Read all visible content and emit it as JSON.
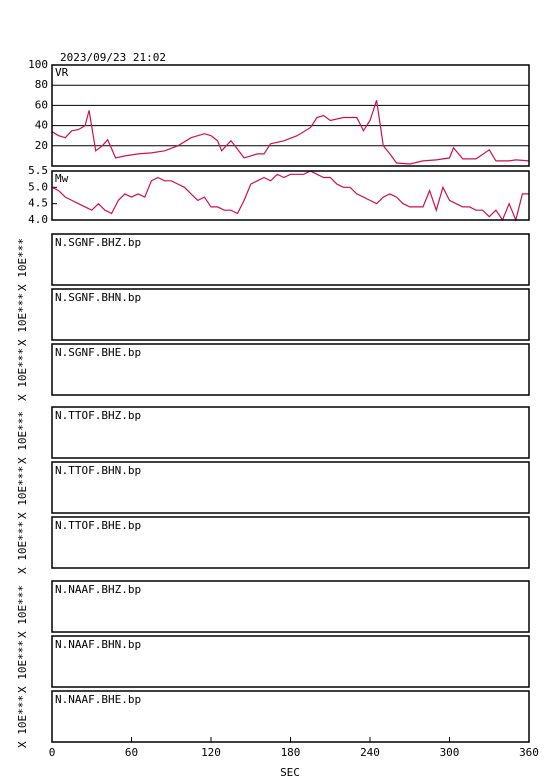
{
  "title": "2023/09/23 21:02",
  "chart_data": [
    {
      "type": "line",
      "label": "VR",
      "color": "#d0104c",
      "grid": true,
      "xlim": [
        0,
        360
      ],
      "ylim": [
        0,
        100
      ],
      "yticks": [
        20,
        40,
        60,
        80,
        100
      ],
      "x": [
        0,
        5,
        10,
        15,
        20,
        25,
        28,
        33,
        38,
        42,
        48,
        55,
        65,
        75,
        85,
        95,
        105,
        115,
        120,
        125,
        128,
        135,
        138,
        145,
        155,
        160,
        165,
        175,
        185,
        195,
        200,
        205,
        210,
        220,
        230,
        235,
        240,
        245,
        250,
        255,
        260,
        270,
        280,
        290,
        300,
        303,
        310,
        320,
        330,
        335,
        345,
        350,
        360
      ],
      "values": [
        34,
        30,
        28,
        35,
        36,
        40,
        55,
        15,
        20,
        26,
        8,
        10,
        12,
        13,
        15,
        20,
        28,
        32,
        30,
        25,
        15,
        25,
        20,
        8,
        12,
        12,
        22,
        25,
        30,
        38,
        48,
        50,
        45,
        48,
        48,
        35,
        45,
        65,
        20,
        12,
        3,
        2,
        5,
        6,
        8,
        18,
        7,
        7,
        16,
        5,
        5,
        6,
        5
      ]
    },
    {
      "type": "line",
      "label": "Mw",
      "color": "#d0104c",
      "grid": false,
      "xlim": [
        0,
        360
      ],
      "ylim": [
        4.0,
        5.5
      ],
      "yticks": [
        {
          "value": 4.0,
          "label": "4.0"
        },
        {
          "value": 4.5,
          "label": "4.5"
        },
        {
          "value": 5.0,
          "label": "5.0"
        },
        {
          "value": 5.5,
          "label": "5.5"
        }
      ],
      "x": [
        0,
        5,
        10,
        15,
        20,
        25,
        30,
        35,
        40,
        45,
        50,
        55,
        60,
        65,
        70,
        75,
        80,
        85,
        90,
        95,
        100,
        105,
        110,
        115,
        120,
        125,
        130,
        135,
        140,
        145,
        150,
        155,
        160,
        165,
        170,
        175,
        180,
        185,
        190,
        195,
        200,
        205,
        210,
        215,
        220,
        225,
        230,
        235,
        240,
        245,
        250,
        255,
        260,
        265,
        270,
        275,
        280,
        285,
        290,
        295,
        300,
        305,
        310,
        315,
        320,
        325,
        330,
        335,
        340,
        345,
        350,
        355,
        360
      ],
      "values": [
        5.0,
        4.9,
        4.7,
        4.6,
        4.5,
        4.4,
        4.3,
        4.5,
        4.3,
        4.2,
        4.6,
        4.8,
        4.7,
        4.8,
        4.7,
        5.2,
        5.3,
        5.2,
        5.2,
        5.1,
        5.0,
        4.8,
        4.6,
        4.7,
        4.4,
        4.4,
        4.3,
        4.3,
        4.2,
        4.6,
        5.1,
        5.2,
        5.3,
        5.2,
        5.4,
        5.3,
        5.4,
        5.4,
        5.4,
        5.5,
        5.4,
        5.3,
        5.3,
        5.1,
        5.0,
        5.0,
        4.8,
        4.7,
        4.6,
        4.5,
        4.7,
        4.8,
        4.7,
        4.5,
        4.4,
        4.4,
        4.4,
        4.9,
        4.3,
        5.0,
        4.6,
        4.5,
        4.4,
        4.4,
        4.3,
        4.3,
        4.1,
        4.3,
        4.0,
        4.5,
        4.0,
        4.8,
        4.8
      ]
    }
  ],
  "traces": [
    {
      "label": "N.SGNF.BHZ.bp",
      "ylabel": "X 10E***"
    },
    {
      "label": "N.SGNF.BHN.bp",
      "ylabel": "X 10E***"
    },
    {
      "label": "N.SGNF.BHE.bp",
      "ylabel": "X 10E***"
    },
    {
      "label": "N.TTOF.BHZ.bp",
      "ylabel": "X 10E***"
    },
    {
      "label": "N.TTOF.BHN.bp",
      "ylabel": "X 10E***"
    },
    {
      "label": "N.TTOF.BHE.bp",
      "ylabel": "X 10E***"
    },
    {
      "label": "N.NAAF.BHZ.bp",
      "ylabel": "X 10E***"
    },
    {
      "label": "N.NAAF.BHN.bp",
      "ylabel": "X 10E***"
    },
    {
      "label": "N.NAAF.BHE.bp",
      "ylabel": "X 10E***"
    }
  ],
  "x_axis": {
    "label": "SEC",
    "xlim": [
      0,
      360
    ],
    "xticks": [
      0,
      60,
      120,
      180,
      240,
      300,
      360
    ]
  }
}
